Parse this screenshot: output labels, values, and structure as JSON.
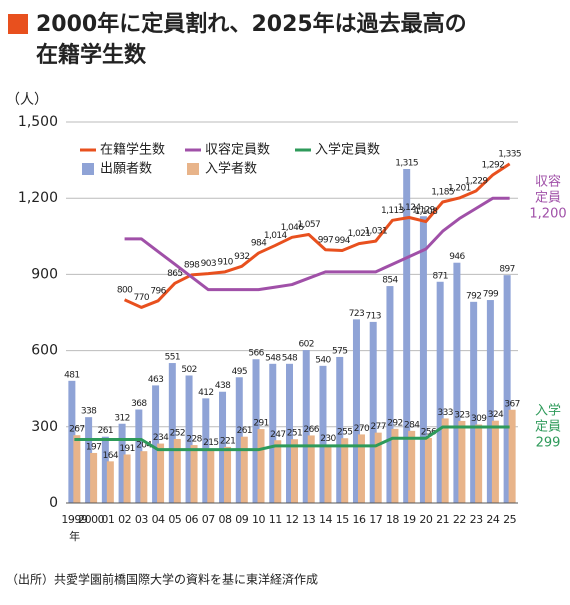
{
  "chart_data": {
    "type": "combo",
    "title": [
      "2000年に定員割れ、2025年は過去最高の",
      "在籍学生数"
    ],
    "y_unit": "（人）",
    "x_unit": "年",
    "source": "（出所）共愛学園前橋国際大学の資料を基に東洋経済作成",
    "categories": [
      "1999",
      "2000",
      "01",
      "02",
      "03",
      "04",
      "05",
      "06",
      "07",
      "08",
      "09",
      "10",
      "11",
      "12",
      "13",
      "14",
      "15",
      "16",
      "17",
      "18",
      "19",
      "20",
      "21",
      "22",
      "23",
      "24",
      "25"
    ],
    "ylim": [
      0,
      1500
    ],
    "yticks": [
      0,
      300,
      600,
      900,
      {
        "value": 1200,
        "label": "1,200"
      },
      {
        "value": 1500,
        "label": "1,500"
      }
    ],
    "grid": true,
    "series": [
      {
        "name": "在籍学生数",
        "type": "line",
        "color": "#e8501e",
        "show_labels": true,
        "values": [
          null,
          null,
          null,
          800,
          770,
          796,
          865,
          898,
          903,
          910,
          932,
          984,
          1014,
          1046,
          1057,
          997,
          994,
          1021,
          1031,
          1113,
          1124,
          1108,
          1185,
          1201,
          1229,
          1292,
          1335
        ],
        "value_labels": [
          null,
          null,
          null,
          "800",
          "770",
          "796",
          "865",
          "898",
          "903",
          "910",
          "932",
          "984",
          "1,014",
          "1,046",
          "1,057",
          "997",
          "994",
          "1,021",
          "1,031",
          "1,113",
          "1,124",
          "1,108",
          "1,185",
          "1,201",
          "1,229",
          "1,292",
          "1,335"
        ]
      },
      {
        "name": "収容定員数",
        "type": "line",
        "color": "#a050a8",
        "show_labels": false,
        "values": [
          null,
          null,
          null,
          1040,
          1040,
          990,
          940,
          890,
          840,
          840,
          840,
          840,
          850,
          860,
          885,
          910,
          910,
          910,
          910,
          940,
          970,
          1000,
          1070,
          1120,
          1160,
          1200,
          1200
        ],
        "end_label": [
          "収容",
          "定員",
          "1,200"
        ]
      },
      {
        "name": "入学定員数",
        "type": "line",
        "color": "#2e9a5a",
        "show_labels": false,
        "values": [
          250,
          250,
          250,
          250,
          250,
          210,
          210,
          210,
          210,
          210,
          210,
          210,
          225,
          225,
          225,
          225,
          225,
          225,
          225,
          255,
          255,
          255,
          299,
          299,
          299,
          299,
          299
        ],
        "end_label": [
          "入学",
          "定員",
          "299"
        ]
      },
      {
        "name": "出願者数",
        "type": "bar",
        "color": "#8fa3d6",
        "show_labels": true,
        "values": [
          481,
          338,
          261,
          312,
          368,
          463,
          551,
          502,
          412,
          438,
          495,
          566,
          548,
          548,
          602,
          540,
          575,
          723,
          713,
          854,
          1315,
          1129,
          871,
          946,
          792,
          799,
          897
        ],
        "value_labels": [
          "481",
          "338",
          "261",
          "312",
          "368",
          "463",
          "551",
          "502",
          "412",
          "438",
          "495",
          "566",
          "548",
          "548",
          "602",
          "540",
          "575",
          "723",
          "713",
          "854",
          "1,315",
          "1,129",
          "871",
          "946",
          "792",
          "799",
          "897"
        ]
      },
      {
        "name": "入学者数",
        "type": "bar",
        "color": "#e8b48a",
        "show_labels": true,
        "values": [
          267,
          197,
          164,
          191,
          204,
          234,
          252,
          228,
          215,
          221,
          261,
          291,
          247,
          251,
          266,
          230,
          255,
          270,
          277,
          292,
          284,
          256,
          333,
          323,
          309,
          324,
          367
        ]
      }
    ]
  }
}
